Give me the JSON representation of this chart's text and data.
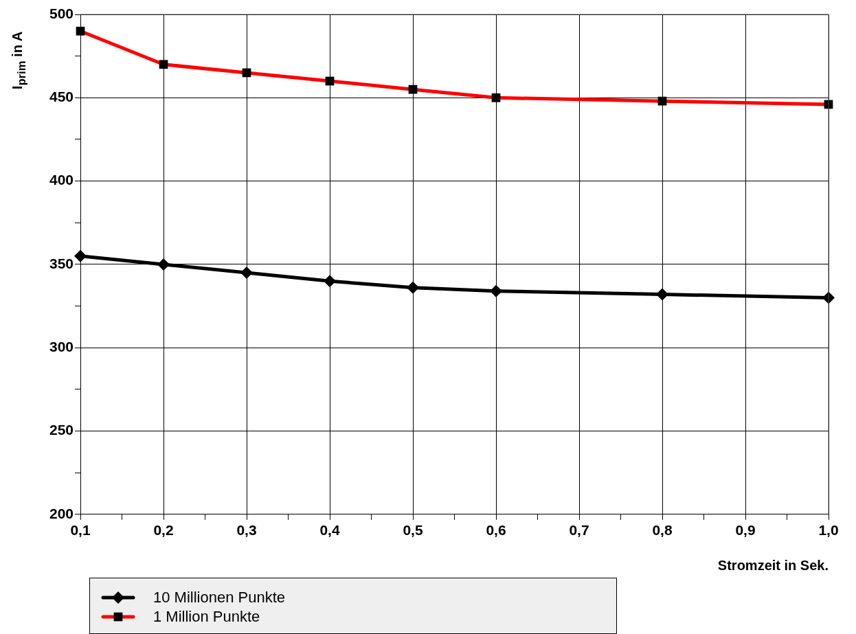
{
  "chart_data": {
    "type": "line",
    "xlabel": "Stromzeit in Sek.",
    "ylabel": "I$_{prim}$ in A",
    "x": [
      0.1,
      0.2,
      0.3,
      0.4,
      0.5,
      0.6,
      0.8,
      1.0
    ],
    "series": [
      {
        "name": "10 Millionen Punkte",
        "color": "#000000",
        "marker": "diamond",
        "values": [
          355,
          350,
          345,
          340,
          336,
          334,
          332,
          330
        ]
      },
      {
        "name": "1 Million Punkte",
        "color": "#ff0000",
        "marker": "square",
        "values": [
          490,
          470,
          465,
          460,
          455,
          450,
          448,
          446
        ]
      }
    ],
    "xlim": [
      0.1,
      1.0
    ],
    "xticks": [
      {
        "value": 0.1,
        "label": "0,1"
      },
      {
        "value": 0.15,
        "label": null
      },
      {
        "value": 0.2,
        "label": "0,2"
      },
      {
        "value": 0.25,
        "label": null
      },
      {
        "value": 0.3,
        "label": "0,3"
      },
      {
        "value": 0.35,
        "label": null
      },
      {
        "value": 0.4,
        "label": "0,4"
      },
      {
        "value": 0.45,
        "label": null
      },
      {
        "value": 0.5,
        "label": "0,5"
      },
      {
        "value": 0.55,
        "label": null
      },
      {
        "value": 0.6,
        "label": "0,6"
      },
      {
        "value": 0.65,
        "label": null
      },
      {
        "value": 0.7,
        "label": "0,7"
      },
      {
        "value": 0.75,
        "label": null
      },
      {
        "value": 0.8,
        "label": "0,8"
      },
      {
        "value": 0.85,
        "label": null
      },
      {
        "value": 0.9,
        "label": "0,9"
      },
      {
        "value": 0.95,
        "label": null
      },
      {
        "value": 1.0,
        "label": "1,0"
      }
    ],
    "ylim": [
      200,
      500
    ],
    "yticks": [
      200,
      {
        "value": 225,
        "label": null
      },
      250,
      {
        "value": 275,
        "label": null
      },
      300,
      {
        "value": 325,
        "label": null
      },
      350,
      {
        "value": 375,
        "label": null
      },
      400,
      {
        "value": 425,
        "label": null
      },
      450,
      {
        "value": 475,
        "label": null
      },
      500
    ],
    "grid": true,
    "legend": "bottom left",
    "line_style": "solid"
  }
}
